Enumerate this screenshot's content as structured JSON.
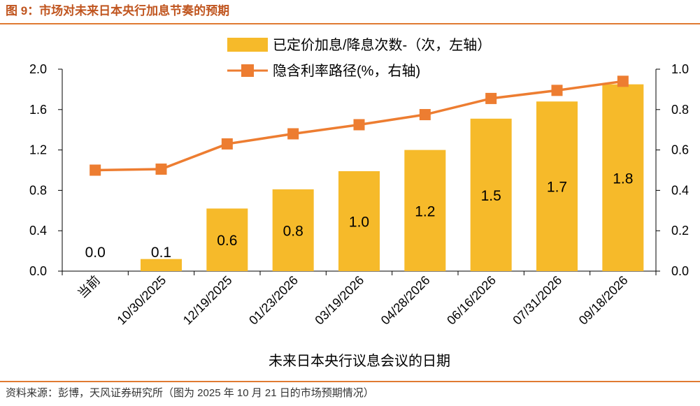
{
  "figure_title": "图 9：市场对未来日本央行加息节奏的预期",
  "source_note": "资料来源：彭博，天风证券研究所（图为 2025 年 10 月 21 日的市场预期情况）",
  "colors": {
    "bar": "#F6BA2A",
    "line": "#ED7D31",
    "accent": "#E07A32",
    "title": "#C0551F"
  },
  "chart_data": {
    "type": "bar+line",
    "categories": [
      "当前",
      "10/30/2025",
      "12/19/2025",
      "01/23/2026",
      "03/19/2026",
      "04/28/2026",
      "06/16/2026",
      "07/31/2026",
      "09/18/2026"
    ],
    "series": [
      {
        "name": "已定价加息/降息次数-（次，左轴）",
        "type": "bar",
        "axis": "left",
        "values": [
          0.0,
          0.12,
          0.62,
          0.81,
          0.99,
          1.2,
          1.51,
          1.68,
          1.85
        ],
        "labels": [
          "0.0",
          "0.1",
          "0.6",
          "0.8",
          "1.0",
          "1.2",
          "1.5",
          "1.7",
          "1.8"
        ]
      },
      {
        "name": "隐含利率路径(%，右轴)",
        "type": "line",
        "axis": "right",
        "values": [
          0.5,
          0.505,
          0.63,
          0.68,
          0.725,
          0.775,
          0.855,
          0.895,
          0.94
        ]
      }
    ],
    "xlabel": "未来日本央行议息会议的日期",
    "ylim_left": [
      0,
      2.0
    ],
    "ylim_right": [
      0,
      1.0
    ],
    "yticks_left": [
      "0.0",
      "0.4",
      "0.8",
      "1.2",
      "1.6",
      "2.0"
    ],
    "yticks_right": [
      "0.0",
      "0.2",
      "0.4",
      "0.6",
      "0.8",
      "1.0"
    ],
    "legend_position": "top"
  }
}
